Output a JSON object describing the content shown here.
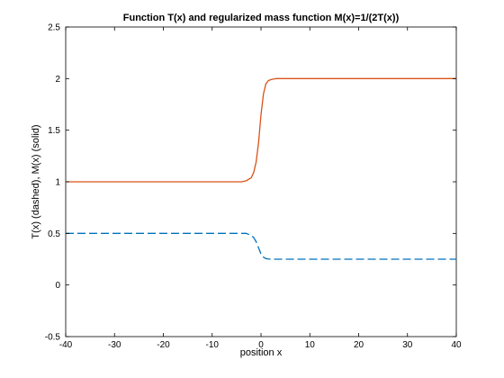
{
  "chart_data": {
    "type": "line",
    "title": "Function T(x) and regularized mass function M(x)=1/(2T(x))",
    "xlabel": "position x",
    "ylabel": "T(x) (dashed), M(x) (solid)",
    "xlim": [
      -40,
      40
    ],
    "ylim": [
      -0.5,
      2.5
    ],
    "xticks": [
      -40,
      -30,
      -20,
      -10,
      0,
      10,
      20,
      30,
      40
    ],
    "yticks": [
      -0.5,
      0,
      0.5,
      1,
      1.5,
      2,
      2.5
    ],
    "xtick_labels": [
      "-40",
      "-30",
      "-20",
      "-10",
      "0",
      "10",
      "20",
      "30",
      "40"
    ],
    "ytick_labels": [
      "-0.5",
      "0",
      "0.5",
      "1",
      "1.5",
      "2",
      "2.5"
    ],
    "grid": false,
    "series": [
      {
        "style": "solid",
        "color": "#d95319",
        "x": [
          -40,
          -10,
          -4,
          -3,
          -2,
          -1.5,
          -1,
          -0.5,
          0,
          0.5,
          1,
          1.5,
          2,
          3,
          4,
          10,
          40
        ],
        "y": [
          1.0,
          1.0,
          1.0,
          1.01,
          1.04,
          1.09,
          1.19,
          1.38,
          1.65,
          1.85,
          1.95,
          1.98,
          1.99,
          2.0,
          2.0,
          2.0,
          2.0
        ]
      },
      {
        "style": "dashed",
        "color": "#0072bd",
        "x": [
          -40,
          -10,
          -4,
          -3,
          -2,
          -1.5,
          -1,
          -0.5,
          0,
          0.5,
          1,
          1.5,
          2,
          3,
          4,
          10,
          40
        ],
        "y": [
          0.5,
          0.5,
          0.5,
          0.5,
          0.48,
          0.46,
          0.42,
          0.36,
          0.3,
          0.27,
          0.256,
          0.252,
          0.25,
          0.25,
          0.25,
          0.25,
          0.25
        ]
      }
    ]
  }
}
